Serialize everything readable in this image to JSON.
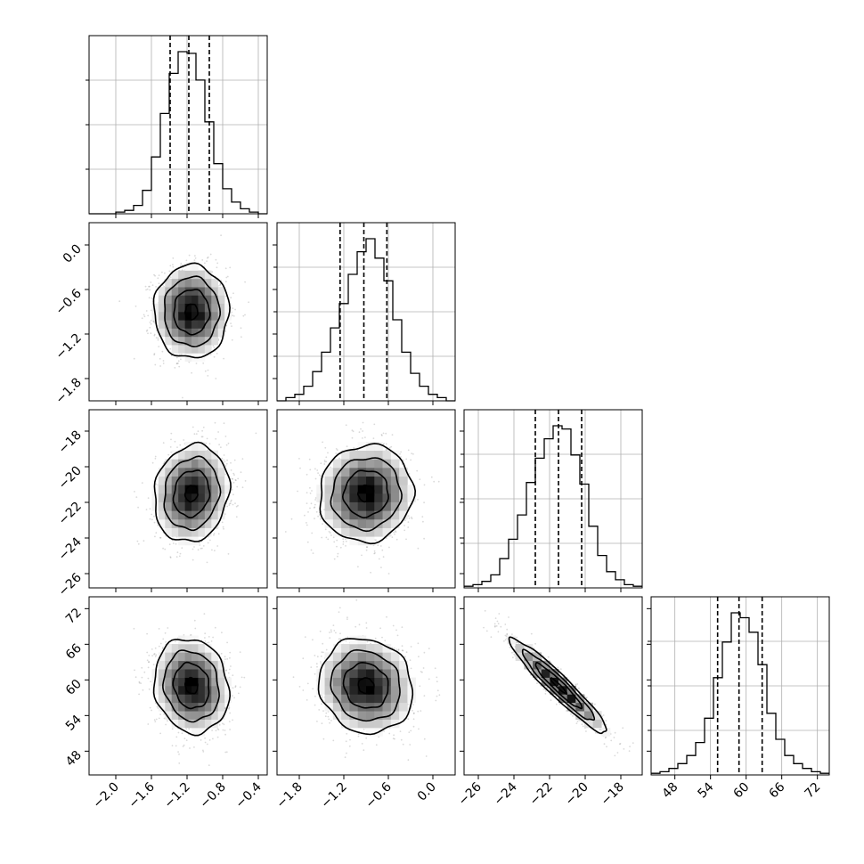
{
  "chart_data": {
    "type": "corner",
    "title": "",
    "grid": true,
    "parameters": [
      {
        "range": [
          -2.3,
          -0.3
        ],
        "ticks": [
          -2.0,
          -1.6,
          -1.2,
          -0.8,
          -0.4
        ],
        "tick_labels": [
          "−2.0",
          "−1.6",
          "−1.2",
          "−0.8",
          "−0.4"
        ],
        "quantiles": [
          -1.39,
          -1.18,
          -0.95
        ]
      },
      {
        "range": [
          -2.1,
          0.3
        ],
        "ticks": [
          -1.8,
          -1.2,
          -0.6,
          0.0
        ],
        "tick_labels": [
          "−1.8",
          "−1.2",
          "−0.6",
          "0.0"
        ],
        "quantiles": [
          -1.25,
          -0.93,
          -0.62
        ]
      },
      {
        "range": [
          -26.8,
          -16.8
        ],
        "ticks": [
          -26,
          -24,
          -22,
          -20,
          -18
        ],
        "tick_labels": [
          "−26",
          "−24",
          "−22",
          "−20",
          "−18"
        ],
        "quantiles": [
          -22.8,
          -21.5,
          -20.2
        ]
      },
      {
        "range": [
          44,
          74
        ],
        "ticks": [
          48,
          54,
          60,
          66,
          72
        ],
        "tick_labels": [
          "48",
          "54",
          "60",
          "66",
          "72"
        ],
        "quantiles": [
          55.2,
          58.8,
          62.7
        ]
      }
    ],
    "histograms": [
      {
        "param": 0,
        "bin_start": -2.3,
        "bin_width": 0.1,
        "counts": [
          0,
          0,
          0,
          1,
          2,
          5,
          14,
          34,
          60,
          84,
          97,
          96,
          80,
          55,
          30,
          15,
          7,
          3,
          1,
          0
        ]
      },
      {
        "param": 1,
        "bin_start": -2.1,
        "bin_width": 0.12,
        "counts": [
          0,
          2,
          4,
          9,
          18,
          30,
          45,
          60,
          78,
          92,
          100,
          88,
          74,
          50,
          30,
          17,
          9,
          4,
          2,
          0
        ]
      },
      {
        "param": 2,
        "bin_start": -26.8,
        "bin_width": 0.5,
        "counts": [
          1,
          2,
          4,
          8,
          18,
          30,
          45,
          65,
          80,
          92,
          100,
          98,
          82,
          64,
          38,
          20,
          10,
          5,
          2,
          1
        ]
      },
      {
        "param": 3,
        "bin_start": 44,
        "bin_width": 1.5,
        "counts": [
          1,
          2,
          4,
          7,
          12,
          20,
          35,
          60,
          82,
          100,
          97,
          88,
          68,
          38,
          22,
          12,
          7,
          4,
          2,
          1
        ]
      }
    ],
    "pairs": [
      {
        "row": 1,
        "col": 0,
        "mean": [
          -1.15,
          -0.9
        ],
        "sd": [
          0.2,
          0.3
        ],
        "corr": 0.0
      },
      {
        "row": 2,
        "col": 0,
        "mean": [
          -1.15,
          -21.5
        ],
        "sd": [
          0.2,
          1.3
        ],
        "corr": 0.12
      },
      {
        "row": 2,
        "col": 1,
        "mean": [
          -0.9,
          -21.5
        ],
        "sd": [
          0.3,
          1.3
        ],
        "corr": 0.05
      },
      {
        "row": 3,
        "col": 0,
        "mean": [
          -1.15,
          59.0
        ],
        "sd": [
          0.2,
          3.8
        ],
        "corr": -0.12
      },
      {
        "row": 3,
        "col": 1,
        "mean": [
          -0.9,
          59.0
        ],
        "sd": [
          0.3,
          3.8
        ],
        "corr": -0.1
      },
      {
        "row": 3,
        "col": 2,
        "mean": [
          -21.5,
          59.0
        ],
        "sd": [
          1.3,
          3.8
        ],
        "corr": -0.95
      }
    ]
  }
}
